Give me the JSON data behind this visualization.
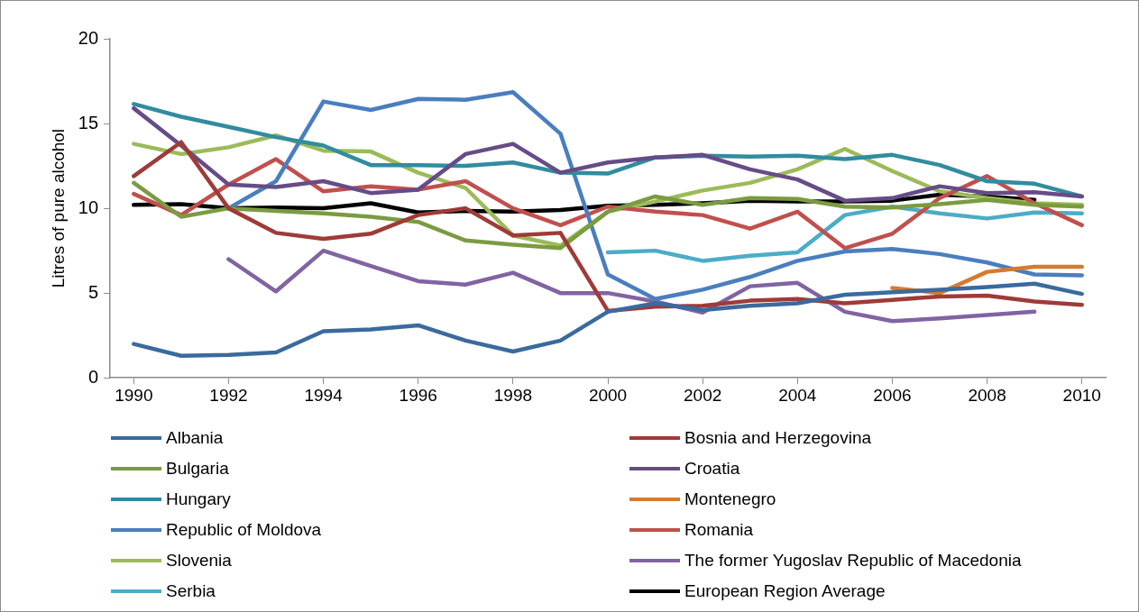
{
  "chart_data": {
    "type": "line",
    "ylabel": "Litres of pure alcohol",
    "x": [
      1990,
      1991,
      1992,
      1993,
      1994,
      1995,
      1996,
      1997,
      1998,
      1999,
      2000,
      2001,
      2002,
      2003,
      2004,
      2005,
      2006,
      2007,
      2008,
      2009,
      2010
    ],
    "xlim": [
      1989.5,
      2010.5
    ],
    "xticks": [
      1990,
      1992,
      1994,
      1996,
      1998,
      2000,
      2002,
      2004,
      2006,
      2008,
      2010
    ],
    "ylim": [
      0,
      20
    ],
    "yticks": [
      0,
      5,
      10,
      15,
      20
    ],
    "grid": false,
    "legend": "bottom",
    "marker": "none",
    "line_style": "solid",
    "series": [
      {
        "name": "Albania",
        "color": "#3a6a9e",
        "values": [
          2.0,
          1.3,
          1.35,
          1.5,
          2.75,
          2.85,
          3.1,
          2.2,
          1.55,
          2.2,
          3.9,
          4.4,
          4.0,
          4.25,
          4.4,
          4.9,
          5.05,
          5.2,
          5.35,
          5.55,
          4.95
        ]
      },
      {
        "name": "Bosnia and Herzegovina",
        "color": "#9e3b38",
        "values": [
          11.9,
          13.9,
          10.0,
          8.55,
          8.2,
          8.5,
          9.6,
          10.0,
          8.4,
          8.55,
          3.95,
          4.2,
          4.25,
          4.55,
          4.65,
          4.4,
          4.6,
          4.8,
          4.85,
          4.5,
          4.3
        ]
      },
      {
        "name": "Bulgaria",
        "color": "#7b9b41",
        "values": [
          11.5,
          9.5,
          10.0,
          9.85,
          9.7,
          9.5,
          9.2,
          8.1,
          7.85,
          7.65,
          9.8,
          10.7,
          10.2,
          10.6,
          10.55,
          10.1,
          10.05,
          10.25,
          10.5,
          10.2,
          10.1
        ]
      },
      {
        "name": "Croatia",
        "color": "#664c87",
        "values": [
          15.9,
          13.7,
          11.4,
          11.25,
          11.6,
          10.9,
          11.1,
          13.2,
          13.8,
          12.1,
          12.7,
          13.0,
          13.15,
          12.3,
          11.7,
          10.45,
          10.6,
          11.3,
          10.9,
          10.95,
          10.7
        ]
      },
      {
        "name": "Hungary",
        "color": "#318c9e",
        "values": [
          16.15,
          15.4,
          14.8,
          14.2,
          13.7,
          12.55,
          12.55,
          12.5,
          12.7,
          12.1,
          12.05,
          13.0,
          13.1,
          13.05,
          13.1,
          12.9,
          13.15,
          12.55,
          11.6,
          11.45,
          10.7
        ]
      },
      {
        "name": "Montenegro",
        "color": "#d47b30",
        "values": [
          null,
          null,
          null,
          null,
          null,
          null,
          null,
          null,
          null,
          null,
          null,
          null,
          null,
          null,
          null,
          null,
          5.3,
          5.0,
          6.25,
          6.55,
          6.55
        ]
      },
      {
        "name": "Republic of Moldova",
        "color": "#4a7ebf",
        "values": [
          null,
          null,
          10.0,
          11.6,
          16.3,
          15.8,
          16.45,
          16.4,
          16.85,
          14.4,
          6.1,
          4.65,
          5.2,
          5.95,
          6.9,
          7.45,
          7.6,
          7.3,
          6.8,
          6.1,
          6.05
        ]
      },
      {
        "name": "Romania",
        "color": "#c0504d",
        "values": [
          10.85,
          9.6,
          11.4,
          12.9,
          11.0,
          11.3,
          11.1,
          11.6,
          10.0,
          9.0,
          10.1,
          9.8,
          9.6,
          8.8,
          9.8,
          7.65,
          8.5,
          10.6,
          11.9,
          10.3,
          9.0
        ]
      },
      {
        "name": "Slovenia",
        "color": "#9bbb59",
        "values": [
          13.8,
          13.2,
          13.6,
          14.3,
          13.4,
          13.35,
          12.1,
          11.2,
          8.4,
          7.8,
          9.8,
          10.4,
          11.05,
          11.5,
          12.3,
          13.5,
          12.2,
          11.0,
          10.6,
          10.3,
          10.2
        ]
      },
      {
        "name": "The former Yugoslav Republic of Macedonia",
        "color": "#8064a2",
        "values": [
          null,
          null,
          7.0,
          5.1,
          7.5,
          6.6,
          5.7,
          5.5,
          6.2,
          5.0,
          5.0,
          4.5,
          3.85,
          5.4,
          5.6,
          3.9,
          3.35,
          3.5,
          3.7,
          3.9,
          null
        ]
      },
      {
        "name": "Serbia",
        "color": "#4bacc6",
        "values": [
          null,
          null,
          null,
          null,
          null,
          null,
          null,
          null,
          null,
          null,
          7.4,
          7.5,
          6.9,
          7.2,
          7.4,
          9.6,
          10.1,
          9.7,
          9.4,
          9.75,
          9.7
        ]
      },
      {
        "name": "European Region Average",
        "color": "#000000",
        "values": [
          10.2,
          10.25,
          10.0,
          10.05,
          10.0,
          10.3,
          9.75,
          9.85,
          9.8,
          9.9,
          10.15,
          10.2,
          10.3,
          10.45,
          10.4,
          10.4,
          10.45,
          10.8,
          10.7,
          10.5,
          null
        ]
      }
    ]
  }
}
